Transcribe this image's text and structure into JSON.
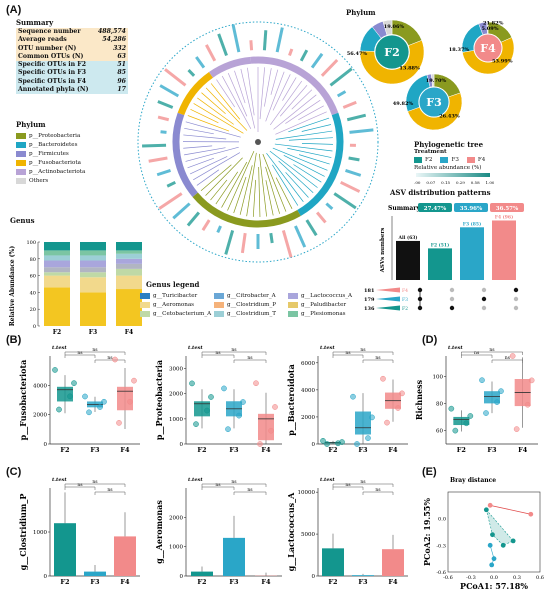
{
  "panel_labels": {
    "A": "(A)",
    "B": "(B)",
    "C": "(C)",
    "D": "(D)",
    "E": "(E)"
  },
  "summary": {
    "title": "Summary",
    "rows": [
      {
        "label": "Sequence number",
        "value": "488,574",
        "color": "#fbe8c8"
      },
      {
        "label": "Average reads",
        "value": "54,286",
        "color": "#fbe8c8"
      },
      {
        "label": "OTU number (N)",
        "value": "332",
        "color": "#fbe8c8"
      },
      {
        "label": "Common OTUs (N)",
        "value": "63",
        "color": "#fbe8c8"
      },
      {
        "label": "Specific OTUs in F2",
        "value": "51",
        "color": "#cde9ef"
      },
      {
        "label": "Specific OTUs in F3",
        "value": "85",
        "color": "#cde9ef"
      },
      {
        "label": "Specific OTUs in F4",
        "value": "96",
        "color": "#cde9ef"
      },
      {
        "label": "Annotated phyla (N)",
        "value": "17",
        "color": "#cde9ef"
      }
    ]
  },
  "phylum_legend": {
    "title": "Phylum",
    "items": [
      {
        "label": "p__Proteobacteria",
        "color": "#8a9a1f"
      },
      {
        "label": "p__Bacteroidetes",
        "color": "#1fa6c4"
      },
      {
        "label": "p__Firmicutes",
        "color": "#8a8ad0"
      },
      {
        "label": "p__Fusobacteriota",
        "color": "#f0b400"
      },
      {
        "label": "p__Actinobacteriota",
        "color": "#b8a3d6"
      },
      {
        "label": "Others",
        "color": "#d8d8d8"
      }
    ]
  },
  "phylo": {
    "title": "Phylogenetic tree",
    "treatment_label": "Treatment",
    "treatments": [
      {
        "label": "F2",
        "color": "#13968e"
      },
      {
        "label": "F3",
        "color": "#2aa6c8"
      },
      {
        "label": "F4",
        "color": "#f28a8a"
      }
    ],
    "rel_abund_label": "Relative abundance (%)",
    "rel_ticks": [
      "0.00",
      "0.07",
      "0.15",
      "0.29",
      "0.58",
      "1.00"
    ]
  },
  "phylum_donuts": {
    "title": "Phylum",
    "donuts": [
      {
        "label": "F2",
        "labels_pct": [
          "19.06%",
          "56.47%",
          "13.88%"
        ],
        "values": [
          19.06,
          56.47,
          13.88,
          6.0,
          4.59
        ],
        "center": "#13968e"
      },
      {
        "label": "F3",
        "labels_pct": [
          "19.70%",
          "49.82%",
          "26.43%"
        ],
        "values": [
          19.7,
          49.82,
          26.43,
          2.5,
          1.55
        ],
        "center": "#2aa6c8"
      },
      {
        "label": "F4",
        "labels_pct": [
          "5.09%",
          "18.37%",
          "53.99%",
          "21.82%"
        ],
        "values": [
          18.37,
          53.99,
          21.82,
          5.09,
          0.73
        ],
        "center": "#f28a8a"
      }
    ]
  },
  "asv": {
    "title": "ASV distribution patterns",
    "summary_label": "Summary",
    "summary_pcts": [
      "27.47%",
      "35.96%",
      "36.57%"
    ],
    "ylabel": "ASVs numbers",
    "bars": [
      {
        "label": "All (63)",
        "value": 63,
        "color": "#111111"
      },
      {
        "label": "F2 (51)",
        "value": 51,
        "color": "#13968e"
      },
      {
        "label": "F3 (85)",
        "value": 85,
        "color": "#2aa6c8"
      },
      {
        "label": "F4 (96)",
        "value": 96,
        "color": "#f28a8a"
      }
    ],
    "set_rows": [
      {
        "count": "181",
        "label": "F4"
      },
      {
        "count": "179",
        "label": "F3"
      },
      {
        "count": "136",
        "label": "F2"
      }
    ]
  },
  "genus_bar": {
    "title": "Genus",
    "ylabel": "Relative Abundance (%)",
    "categories": [
      "F2",
      "F3",
      "F4"
    ],
    "yticks": [
      "0",
      "20",
      "40",
      "60",
      "80",
      "100"
    ]
  },
  "genus_legend": {
    "title": "Genus legend",
    "items": [
      {
        "label": "g__Turicibacter",
        "color": "#2a7fc2"
      },
      {
        "label": "g__Citrobacter_A",
        "color": "#6aa7d6"
      },
      {
        "label": "g__Lactococcus_A",
        "color": "#a9a6dc"
      },
      {
        "label": "g__Aeromonas",
        "color": "#f2d98c"
      },
      {
        "label": "g__Clostridium_P",
        "color": "#f5b27a"
      },
      {
        "label": "g__Paludibacter",
        "color": "#e6c96a"
      },
      {
        "label": "g__Cetobacterium_A",
        "color": "#bfd9a6"
      },
      {
        "label": "g__Clostridium_T",
        "color": "#9ccfd6"
      },
      {
        "label": "g__Plesiomonas",
        "color": "#7bc5a3"
      }
    ]
  },
  "test_label": "t.test",
  "significance": {
    "ns": "ns",
    "star": "*"
  },
  "chart_data": [
    {
      "type": "box",
      "panel": "B1",
      "ylabel": "p__Fusobacteriota",
      "categories": [
        "F2",
        "F3",
        "F4"
      ],
      "ylim": [
        0,
        6000
      ],
      "yticks": [
        0,
        2000,
        4000
      ],
      "medians": [
        3700,
        2700,
        3600
      ],
      "q1": [
        2900,
        2500,
        2300
      ],
      "q3": [
        3900,
        2900,
        3900
      ]
    },
    {
      "type": "box",
      "panel": "B2",
      "ylabel": "p__Proteobacteria",
      "categories": [
        "F2",
        "F3",
        "F4"
      ],
      "ylim": [
        0,
        3500
      ],
      "yticks": [
        0,
        1000,
        2000,
        3000
      ],
      "medians": [
        1600,
        1400,
        1000
      ],
      "q1": [
        1100,
        1100,
        150
      ],
      "q3": [
        1700,
        1700,
        1200
      ]
    },
    {
      "type": "box",
      "panel": "B3",
      "ylabel": "p__Bacteroidota",
      "categories": [
        "F2",
        "F3",
        "F4"
      ],
      "ylim": [
        0,
        6500
      ],
      "yticks": [
        0,
        2000,
        4000,
        6000
      ],
      "medians": [
        100,
        1200,
        3200
      ],
      "q1": [
        50,
        700,
        2600
      ],
      "q3": [
        150,
        2400,
        3800
      ]
    },
    {
      "type": "box",
      "panel": "D",
      "ylabel": "Richness",
      "categories": [
        "F2",
        "F3",
        "F4"
      ],
      "ylim": [
        50,
        115
      ],
      "yticks": [
        60,
        80,
        100
      ],
      "medians": [
        68,
        85,
        88
      ],
      "q1": [
        64,
        80,
        78
      ],
      "q3": [
        70,
        89,
        98
      ]
    },
    {
      "type": "bar",
      "panel": "C1",
      "ylabel": "g__Clostridium_P",
      "categories": [
        "F2",
        "F3",
        "F4"
      ],
      "values": [
        1200,
        100,
        900
      ],
      "ylim": [
        0,
        2000
      ],
      "yticks": [
        0,
        1000
      ]
    },
    {
      "type": "bar",
      "panel": "C2",
      "ylabel": "g__Aeromonas",
      "categories": [
        "F2",
        "F3",
        "F4"
      ],
      "values": [
        150,
        1300,
        10
      ],
      "ylim": [
        0,
        3000
      ],
      "yticks": [
        0,
        1000,
        2000
      ]
    },
    {
      "type": "bar",
      "panel": "C3",
      "ylabel": "g__Lactococcus_A",
      "categories": [
        "F2",
        "F3",
        "F4"
      ],
      "values": [
        3300,
        100,
        3200
      ],
      "ylim": [
        0,
        10500
      ],
      "yticks": [
        0,
        5000,
        10000
      ]
    },
    {
      "type": "scatter",
      "panel": "E",
      "title": "Bray distance",
      "xlabel": "PCoA1: 57.18%",
      "ylabel": "PCoA2: 19.55%",
      "xlim": [
        -0.6,
        0.6
      ],
      "ylim": [
        -0.6,
        0.3
      ],
      "xticks": [
        -0.6,
        -0.3,
        0.0,
        0.3,
        0.6
      ],
      "yticks": [
        -0.6,
        -0.3,
        0.0
      ]
    }
  ],
  "group_colors": {
    "F2": "#13968e",
    "F3": "#2aa6c8",
    "F4": "#f28a8a"
  }
}
